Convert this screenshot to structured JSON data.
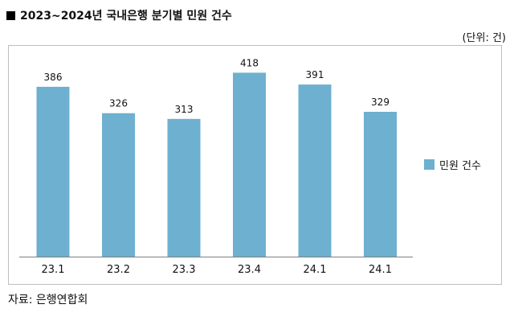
{
  "header": {
    "title": "2023~2024년 국내은행 분기별 민원 건수",
    "unit": "(단위: 건)"
  },
  "footer": {
    "source": "자료: 은행연합회"
  },
  "colors": {
    "bar": "#6eb0cf",
    "axis": "#7f7f7f"
  },
  "chart_data": {
    "type": "bar",
    "categories": [
      "23.1",
      "23.2",
      "23.3",
      "23.4",
      "24.1",
      "24.1"
    ],
    "series": [
      {
        "name": "민원 건수",
        "values": [
          386,
          326,
          313,
          418,
          391,
          329
        ]
      }
    ],
    "title": "2023~2024년 국내은행 분기별 민원 건수",
    "xlabel": "",
    "ylabel": "",
    "ylim": [
      0,
      440
    ],
    "grid": false,
    "legend": "right"
  }
}
